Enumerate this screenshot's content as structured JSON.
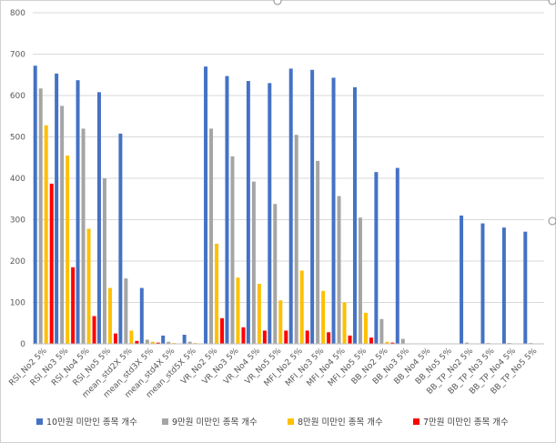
{
  "chart_data": {
    "type": "bar",
    "title": "",
    "xlabel": "",
    "ylabel": "",
    "ylim": [
      0,
      800
    ],
    "yticks": [
      "0",
      "100",
      "200",
      "300",
      "400",
      "500",
      "600",
      "700",
      "800"
    ],
    "grid": true,
    "legend_position": "bottom",
    "categories": [
      "RSI_No2 5%",
      "RSI_No3 5%",
      "RSI_No4 5%",
      "RSI_No5 5%",
      "mean_std2X 5%",
      "mean_std3X 5%",
      "mean_std4X 5%",
      "mean_std5X 5%",
      "VR_No2 5%",
      "VR_No3 5%",
      "VR_No4 5%",
      "VR_No5 5%",
      "MFI_No2 5%",
      "MFI_No3 5%",
      "MFI_No4 5%",
      "MFI_No5 5%",
      "BB_No2 5%",
      "BB_No3 5%",
      "BB_No4 5%",
      "BB_No5 5%",
      "BB_TP_No2 5%",
      "BB_TP_No3 5%",
      "BB_TP_No4 5%",
      "BB_TP_No5 5%"
    ],
    "series": [
      {
        "name": "10만원 미만인 종목 개수",
        "color": "#4472c4",
        "values": [
          672,
          653,
          637,
          608,
          508,
          135,
          20,
          22,
          670,
          647,
          635,
          630,
          665,
          662,
          643,
          620,
          415,
          425,
          0,
          0,
          310,
          291,
          281,
          271
        ]
      },
      {
        "name": "9만원 미만인 종목 개수",
        "color": "#a5a5a5",
        "values": [
          617,
          575,
          520,
          400,
          158,
          10,
          5,
          5,
          520,
          453,
          392,
          338,
          505,
          442,
          357,
          305,
          60,
          12,
          0,
          0,
          3,
          2,
          2,
          2
        ]
      },
      {
        "name": "8만원 미만인 종목 개수",
        "color": "#ffc000",
        "values": [
          528,
          455,
          278,
          135,
          32,
          5,
          2,
          2,
          242,
          160,
          145,
          105,
          177,
          128,
          100,
          75,
          5,
          0,
          0,
          0,
          0,
          0,
          0,
          0
        ]
      },
      {
        "name": "7만원 미만인 종목 개수",
        "color": "#ff0000",
        "values": [
          387,
          185,
          67,
          25,
          7,
          3,
          1,
          1,
          62,
          40,
          32,
          32,
          32,
          28,
          20,
          15,
          3,
          0,
          0,
          0,
          0,
          0,
          0,
          0
        ]
      }
    ]
  }
}
